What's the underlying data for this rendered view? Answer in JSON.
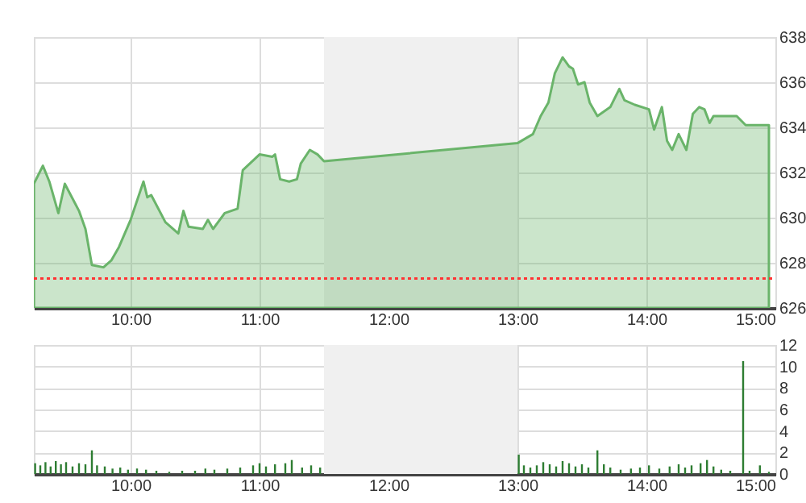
{
  "chart_data": [
    {
      "type": "area",
      "x": [
        9.25,
        9.32,
        9.37,
        9.44,
        9.49,
        9.6,
        9.65,
        9.7,
        9.79,
        9.85,
        9.91,
        10.0,
        10.1,
        10.13,
        10.16,
        10.27,
        10.37,
        10.41,
        10.45,
        10.56,
        10.6,
        10.64,
        10.73,
        10.83,
        10.87,
        11.0,
        11.1,
        11.12,
        11.16,
        11.23,
        11.29,
        11.32,
        11.39,
        11.45,
        11.5,
        13.0,
        13.12,
        13.18,
        13.24,
        13.29,
        13.35,
        13.4,
        13.43,
        13.47,
        13.52,
        13.56,
        13.62,
        13.72,
        13.79,
        13.83,
        13.91,
        14.02,
        14.06,
        14.12,
        14.16,
        14.2,
        14.25,
        14.31,
        14.36,
        14.41,
        14.45,
        14.49,
        14.52,
        14.7,
        14.77,
        14.95
      ],
      "series": [
        {
          "color": "#6ab46a",
          "values": [
            631.5,
            632.3,
            631.6,
            630.2,
            631.5,
            630.3,
            629.5,
            627.9,
            627.8,
            628.1,
            628.7,
            629.9,
            631.6,
            630.9,
            631.0,
            629.8,
            629.3,
            630.3,
            629.6,
            629.5,
            629.9,
            629.5,
            630.2,
            630.4,
            632.1,
            632.8,
            632.7,
            632.8,
            631.7,
            631.6,
            631.7,
            632.4,
            633.0,
            632.8,
            632.5,
            633.3,
            633.7,
            634.5,
            635.1,
            636.4,
            637.1,
            636.7,
            636.6,
            635.9,
            636.0,
            635.1,
            634.5,
            634.9,
            635.7,
            635.2,
            635.0,
            634.8,
            633.9,
            634.9,
            633.4,
            633.0,
            633.7,
            633.0,
            634.6,
            634.9,
            634.8,
            634.2,
            634.5,
            634.5,
            634.1,
            634.1
          ]
        }
      ],
      "xlim": [
        9.25,
        15
      ],
      "xticks": [
        {
          "value": 10,
          "label": "10:00"
        },
        {
          "value": 11,
          "label": "11:00"
        },
        {
          "value": 12,
          "label": "12:00"
        },
        {
          "value": 13,
          "label": "13:00"
        },
        {
          "value": 14,
          "label": "14:00"
        },
        {
          "value": 15,
          "label": "15:00"
        }
      ],
      "ylim": [
        626,
        638
      ],
      "yticks": [
        626,
        628,
        630,
        632,
        634,
        636,
        638
      ],
      "grid": true,
      "ref_lines": [
        {
          "axis": "y",
          "value": 627.3,
          "color": "#ff3333",
          "line_style": "dotted"
        }
      ],
      "bands": [
        {
          "axis": "x",
          "from": 11.5,
          "to": 13,
          "color": "#f0f0f0"
        }
      ]
    },
    {
      "type": "bar",
      "x": [
        9.26,
        9.3,
        9.34,
        9.38,
        9.42,
        9.46,
        9.5,
        9.55,
        9.6,
        9.65,
        9.7,
        9.74,
        9.8,
        9.86,
        9.92,
        9.98,
        10.05,
        10.12,
        10.2,
        10.3,
        10.4,
        10.5,
        10.58,
        10.65,
        10.75,
        10.85,
        10.95,
        11.0,
        11.05,
        11.12,
        11.2,
        11.25,
        11.33,
        11.4,
        11.47,
        13.01,
        13.05,
        13.1,
        13.15,
        13.2,
        13.25,
        13.3,
        13.35,
        13.4,
        13.45,
        13.5,
        13.55,
        13.62,
        13.67,
        13.72,
        13.8,
        13.88,
        13.95,
        14.02,
        14.1,
        14.18,
        14.25,
        14.3,
        14.35,
        14.42,
        14.47,
        14.52,
        14.58,
        14.65,
        14.75,
        14.8,
        14.88,
        14.95
      ],
      "values": [
        1.0,
        0.8,
        1.1,
        0.7,
        1.2,
        0.9,
        1.1,
        0.7,
        1.0,
        0.9,
        2.2,
        0.8,
        0.7,
        0.5,
        0.6,
        0.4,
        0.5,
        0.4,
        0.3,
        0.2,
        0.3,
        0.3,
        0.5,
        0.4,
        0.5,
        0.6,
        0.8,
        1.0,
        0.7,
        0.9,
        1.0,
        1.3,
        0.6,
        0.8,
        0.6,
        1.8,
        0.8,
        0.6,
        0.8,
        1.1,
        0.9,
        0.7,
        1.2,
        1.0,
        0.7,
        0.9,
        0.6,
        2.2,
        0.9,
        0.6,
        0.4,
        0.5,
        0.6,
        0.8,
        0.5,
        0.7,
        0.9,
        0.6,
        0.8,
        1.0,
        1.3,
        0.7,
        0.4,
        0.3,
        10.5,
        0.3,
        0.8,
        0.2
      ],
      "color": "#2e7d32",
      "xlim": [
        9.25,
        15
      ],
      "xticks": [
        {
          "value": 10,
          "label": "10:00"
        },
        {
          "value": 11,
          "label": "11:00"
        },
        {
          "value": 12,
          "label": "12:00"
        },
        {
          "value": 13,
          "label": "13:00"
        },
        {
          "value": 14,
          "label": "14:00"
        },
        {
          "value": 15,
          "label": "15:00"
        }
      ],
      "ylim": [
        0,
        12
      ],
      "yticks": [
        0,
        2,
        4,
        6,
        8,
        10,
        12
      ],
      "grid": true,
      "bands": [
        {
          "axis": "x",
          "from": 11.5,
          "to": 13,
          "color": "#f0f0f0"
        }
      ]
    }
  ]
}
